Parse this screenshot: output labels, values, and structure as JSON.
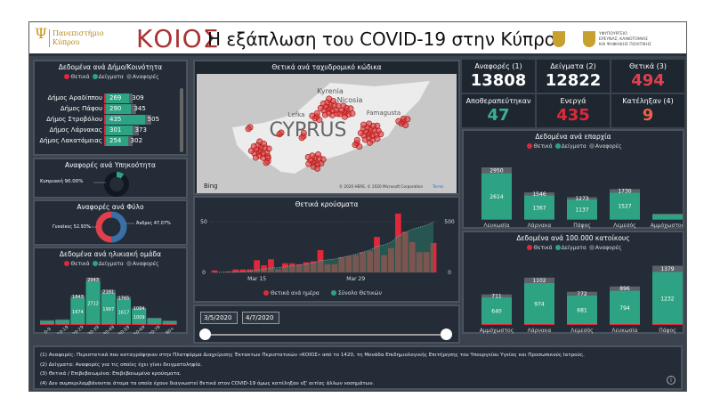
{
  "header": {
    "university": [
      "Πανεπιστήμιο",
      "Κύπρου"
    ],
    "brand": "ΚΟΙΟΣ",
    "title": "Η εξάπλωση του COVID-19 στην Κύπρο",
    "ministry": [
      "ΥΦΥΠΟΥΡΓΕΙΟ",
      "ΕΡΕΥΝΑΣ, ΚΑΙΝΟΤΟΜΙΑΣ",
      "ΚΑΙ ΨΗΦΙΑΚΗΣ ΠΟΛΙΤΙΚΗΣ"
    ]
  },
  "legend": {
    "positive": "Θετικά",
    "samples": "Δείγματα",
    "reports": "Αναφορές"
  },
  "colors": {
    "positive": "#e0283a",
    "samples": "#2ea383",
    "reports": "#5b6168",
    "recovered": "#3bb08f",
    "cum": "#2a7a64"
  },
  "municipalities": {
    "title": "Δεδομένα ανά Δήμο/Κοινότητα",
    "rows": [
      {
        "name": "Δήμος Αραδίππου",
        "samples": 269,
        "reports": 309
      },
      {
        "name": "Δήμος Πάφου",
        "samples": 290,
        "reports": 345
      },
      {
        "name": "Δήμος Στροβόλου",
        "samples": 435,
        "reports": 505
      },
      {
        "name": "Δήμος Λάρνακας",
        "samples": 301,
        "reports": 373
      },
      {
        "name": "Δήμος Λακατάμειας",
        "samples": 254,
        "reports": 302
      }
    ]
  },
  "citizenship": {
    "title": "Αναφορές ανά Υπηκοότητα",
    "label": "Κυπριακή 90.00%",
    "share": 0.9
  },
  "gender": {
    "title": "Αναφορές ανά Φύλο",
    "female": "Γυναίκες 52.93%",
    "male": "Άνδρες 47.07%",
    "female_share": 0.5293
  },
  "age": {
    "title": "Δεδομένα ανά ηλικιακή ομάδα",
    "categories": [
      "0-9",
      "10-19",
      "20-29",
      "30-39",
      "40-49",
      "50-59",
      "60-69",
      "70-79",
      "80+"
    ],
    "reports": [
      300,
      350,
      1843,
      2943,
      2181,
      1765,
      1084,
      450,
      280
    ],
    "samples": [
      250,
      300,
      1674,
      2712,
      1997,
      1617,
      1009,
      400,
      230
    ],
    "labels_reports": [
      "",
      "",
      "1843",
      "2943",
      "2181",
      "1765",
      "1084",
      "",
      ""
    ],
    "labels_samples": [
      "",
      "",
      "1674",
      "2712",
      "1997",
      "1617",
      "1009",
      "",
      ""
    ]
  },
  "map": {
    "title": "Θετικά ανά ταχυδρομικό κώδικα",
    "places": [
      "Kyrenia",
      "Nicosia",
      "Lefka",
      "Famagusta",
      "CYPRUS"
    ],
    "provider": "Bing",
    "copyright": "© 2020 HERE, © 2020 Microsoft Corporation",
    "terms": "Terms"
  },
  "chart_data": {
    "type": "bar",
    "title": "Θετικά κρούσματα",
    "x_start": "Mar 9",
    "x_ticks": [
      "Mar 15",
      "Mar 29"
    ],
    "tick_index": [
      6,
      20
    ],
    "series": [
      {
        "name": "Θετικά ανά ημέρα",
        "values": [
          2,
          0,
          1,
          3,
          3,
          3,
          12,
          7,
          13,
          3,
          9,
          9,
          8,
          10,
          11,
          22,
          8,
          8,
          15,
          16,
          17,
          20,
          21,
          35,
          17,
          24,
          58,
          40,
          30,
          20,
          20,
          29
        ]
      },
      {
        "name": "Σύνολο Θετικών",
        "type": "area",
        "cumulative_of": "Θετικά ανά ημέρα"
      }
    ],
    "y_left": [
      0,
      50
    ],
    "y_right": [
      0,
      500
    ],
    "y_left_labels": [
      "0",
      "50"
    ],
    "y_right_labels": [
      "0",
      "500"
    ]
  },
  "dates": {
    "from": "3/5/2020",
    "to": "4/7/2020"
  },
  "kpis": [
    {
      "label": "Αναφορές (1)",
      "value": "13808",
      "color": "#ffffff"
    },
    {
      "label": "Δείγματα (2)",
      "value": "12822",
      "color": "#ffffff"
    },
    {
      "label": "Θετικά (3)",
      "value": "494",
      "color": "#e0404e"
    },
    {
      "label": "Αποθεραπεύτηκαν",
      "value": "47",
      "color": "#3bb08f"
    },
    {
      "label": "Ενεργά",
      "value": "435",
      "color": "#e0283a"
    },
    {
      "label": "Κατέληξαν (4)",
      "value": "9",
      "color": "#f0604a"
    }
  ],
  "districts": {
    "title": "Δεδομένα ανά επαρχία",
    "categories": [
      "Λευκωσία",
      "Λάρνακα",
      "Πάφος",
      "Λεμεσός",
      "Αμμόχωστος"
    ],
    "reports": [
      2950,
      1546,
      1273,
      1730,
      350
    ],
    "samples": [
      2614,
      1367,
      1137,
      1527,
      300
    ],
    "labels_reports": [
      "2950",
      "1546",
      "1273",
      "1730",
      ""
    ],
    "labels_samples": [
      "2614",
      "1367",
      "1137",
      "1527",
      ""
    ]
  },
  "per100k": {
    "title": "Δεδομένα ανά 100.000 κατοίκους",
    "categories": [
      "Αμμόχωστος",
      "Λάρνακα",
      "Λεμεσός",
      "Λευκωσία",
      "Πάφος"
    ],
    "reports": [
      711,
      1102,
      772,
      896,
      1379
    ],
    "samples": [
      640,
      974,
      681,
      794,
      1232
    ],
    "labels_reports": [
      "711",
      "1102",
      "772",
      "896",
      "1379"
    ],
    "labels_samples": [
      "640",
      "974",
      "681",
      "794",
      "1232"
    ]
  },
  "notes": [
    "(1) Αναφορές: Περιστατικά που καταγράφηκαν στην Πλατφόρμα Διαχείρισης Έκτακτων Περιστατικών «ΚΟΙΟΣ» από το 1420, τη Μονάδα Επιδημιολογικής Επιτήρησης του Υπουργείου Υγείας και Προσωπικούς Ιατρούς.",
    "(2) Δείγματα: Αναφορές για τις οποίες έχει γίνει δειγματοληψία.",
    "(3) Θετικά / Επιβεβαιωμένα: Επιβεβαιωμένα κρούσματα.",
    "(4) Δεν συμπεριλαμβάνονται άτομα τα οποία έχουν διαγνωστεί θετικά στον COVID-19 όμως κατέληξαν εξ' αιτίας άλλων νοσημάτων."
  ]
}
